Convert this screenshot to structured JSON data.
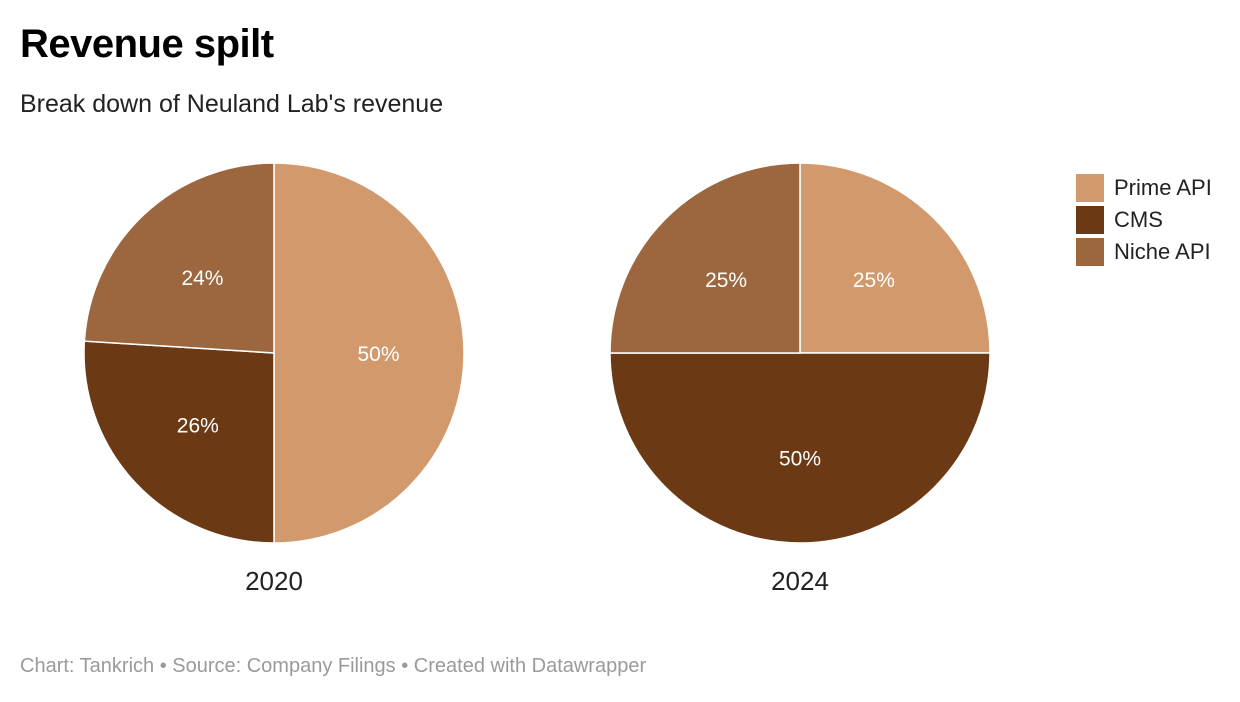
{
  "header": {
    "title": "Revenue spilt",
    "subtitle": "Break down of Neuland Lab's revenue"
  },
  "footer": {
    "credit": "Chart: Tankrich • Source: Company Filings • Created with Datawrapper"
  },
  "colors": {
    "Prime API": "#d2996c",
    "CMS": "#6b3913",
    "Niche API": "#9c673f",
    "slice_label": "#ffffff",
    "separator": "#ffffff"
  },
  "chart_data": [
    {
      "type": "pie",
      "label": "2020",
      "categories": [
        "Prime API",
        "CMS",
        "Niche API"
      ],
      "values": [
        50,
        26,
        24
      ],
      "value_labels": [
        "50%",
        "26%",
        "24%"
      ],
      "legend": "right"
    },
    {
      "type": "pie",
      "label": "2024",
      "categories": [
        "Prime API",
        "CMS",
        "Niche API"
      ],
      "values": [
        25,
        50,
        25
      ],
      "value_labels": [
        "25%",
        "50%",
        "25%"
      ],
      "legend": "right"
    }
  ],
  "legend": {
    "items": [
      "Prime API",
      "CMS",
      "Niche API"
    ]
  }
}
